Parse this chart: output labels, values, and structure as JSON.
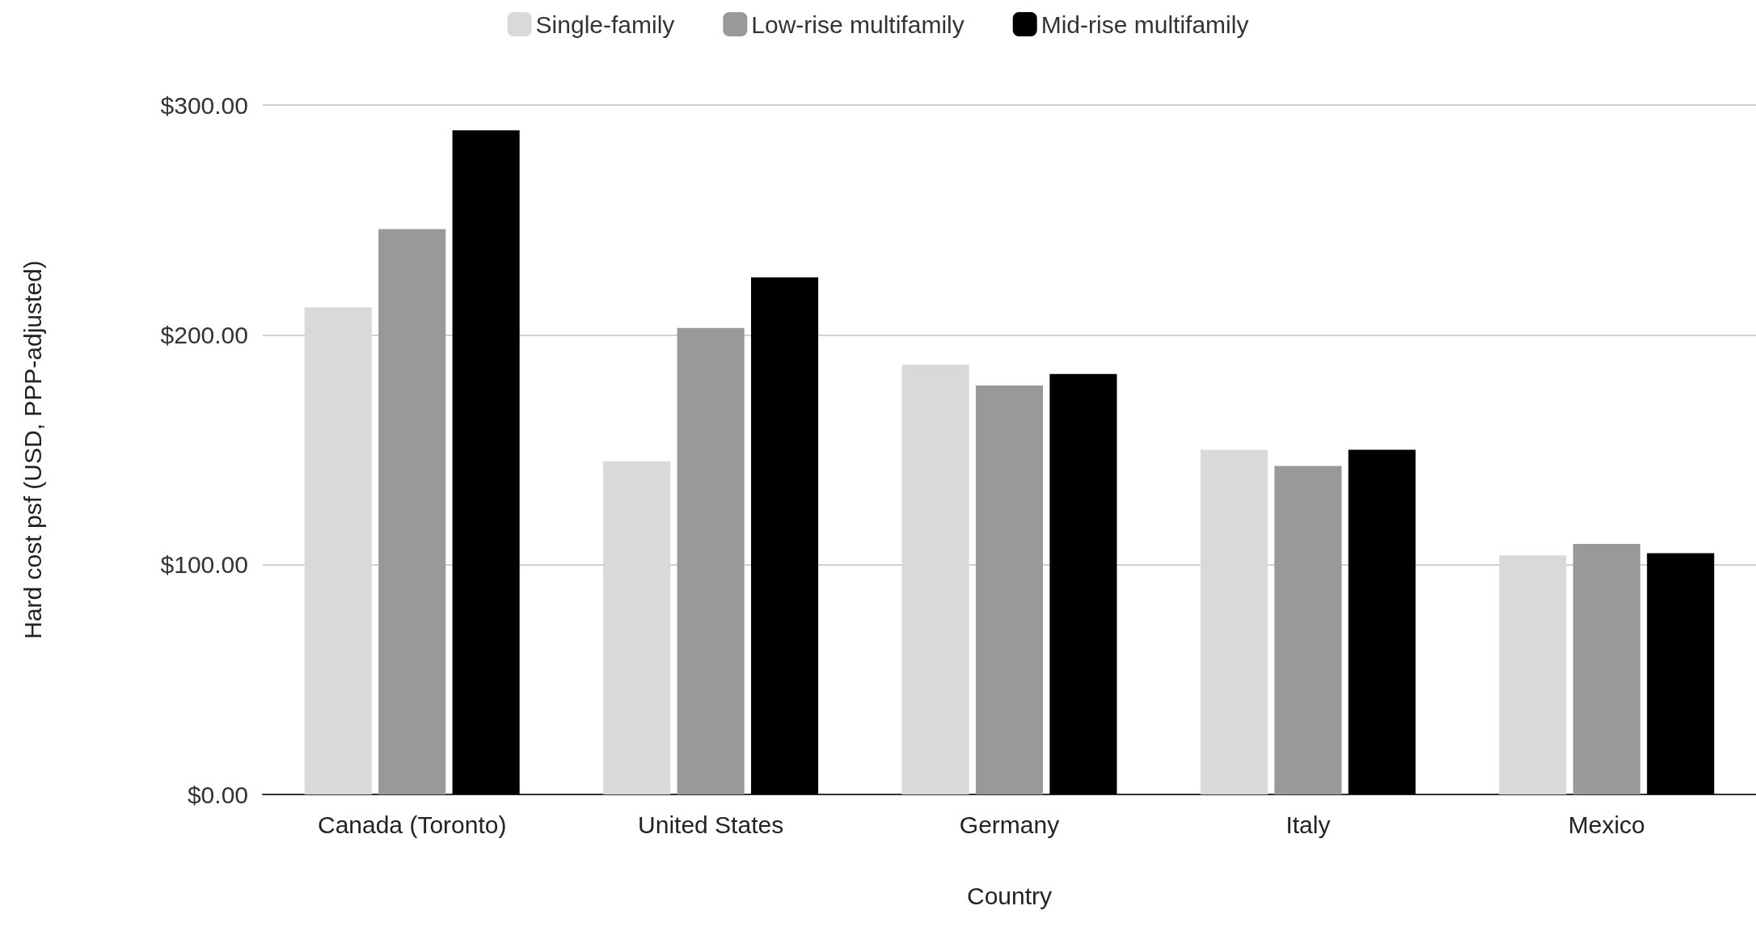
{
  "chart_data": {
    "type": "bar",
    "xlabel": "Country",
    "ylabel": "Hard cost psf (USD, PPP-adjusted)",
    "categories": [
      "Canada (Toronto)",
      "United States",
      "Germany",
      "Italy",
      "Mexico"
    ],
    "series": [
      {
        "name": "Single-family",
        "color": "#d9d9d9",
        "values": [
          212,
          145,
          187,
          150,
          104
        ]
      },
      {
        "name": "Low-rise multifamily",
        "color": "#999999",
        "values": [
          246,
          203,
          178,
          143,
          109
        ]
      },
      {
        "name": "Mid-rise multifamily",
        "color": "#000000",
        "values": [
          289,
          225,
          183,
          150,
          105
        ]
      }
    ],
    "ylim": [
      0,
      300
    ],
    "yticks": [
      {
        "value": 0,
        "label": "$0.00"
      },
      {
        "value": 100,
        "label": "$100.00"
      },
      {
        "value": 200,
        "label": "$200.00"
      },
      {
        "value": 300,
        "label": "$300.00"
      }
    ],
    "grid": "y",
    "legend": "top"
  }
}
